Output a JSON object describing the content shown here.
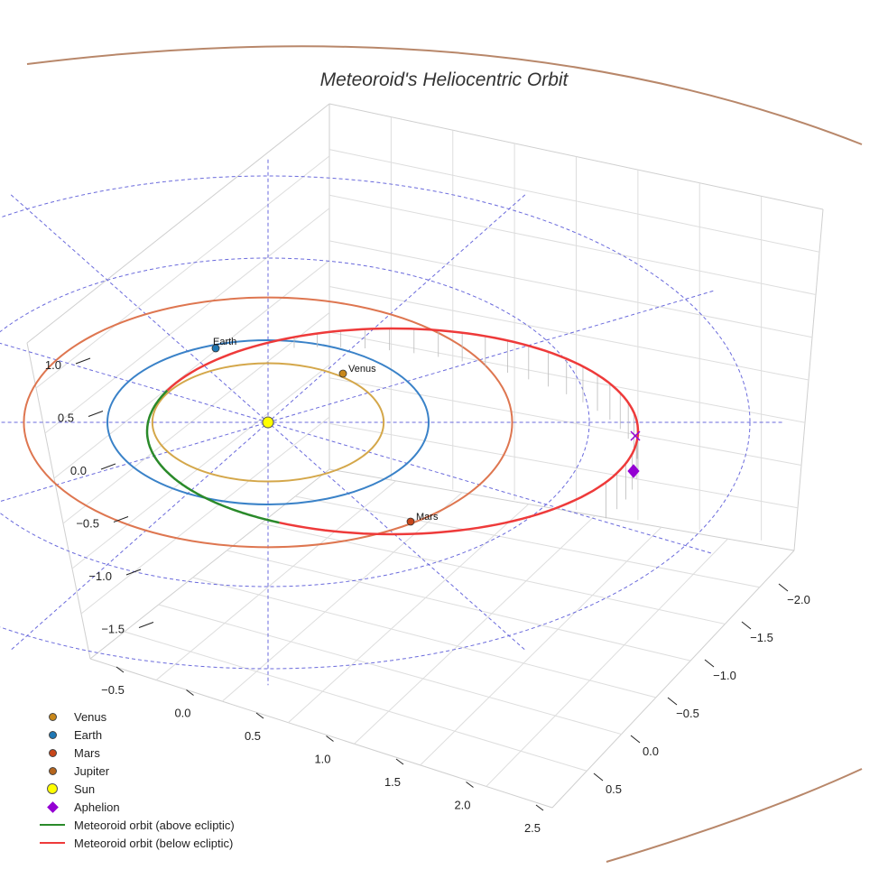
{
  "chart_data": {
    "type": "scatter3d",
    "title": "Meteoroid's Heliocentric Orbit",
    "x_ticks": [
      "−0.5",
      "0.0",
      "0.5",
      "1.0",
      "1.5",
      "2.0",
      "2.5"
    ],
    "y_ticks": [
      "−2.0",
      "−1.5",
      "−1.0",
      "−0.5",
      "0.0",
      "0.5"
    ],
    "z_ticks": [
      "1.0",
      "0.5",
      "0.0",
      "−0.5",
      "−1.0",
      "−1.5"
    ],
    "planets": [
      {
        "name": "Venus",
        "orbit_radius_au": 0.72,
        "color": "#c8871a",
        "orbit_color": "#d4a74a"
      },
      {
        "name": "Earth",
        "orbit_radius_au": 1.0,
        "color": "#1f77b4",
        "orbit_color": "#3a82c8"
      },
      {
        "name": "Mars",
        "orbit_radius_au": 1.52,
        "color": "#c8461a",
        "orbit_color": "#de7650"
      },
      {
        "name": "Jupiter",
        "orbit_radius_au": 5.2,
        "color": "#b5651d",
        "orbit_color": "#b8876a"
      }
    ],
    "plane_circles_au": [
      1.0,
      2.0,
      3.0
    ],
    "sun": {
      "name": "Sun",
      "color": "#ffff00"
    },
    "aphelion": {
      "name": "Aphelion",
      "color": "#9400d3"
    },
    "meteoroid_segments": [
      {
        "name": "Meteoroid orbit (above ecliptic)",
        "color": "#2a8a2a"
      },
      {
        "name": "Meteoroid orbit (below ecliptic)",
        "color": "#ee3a3a"
      }
    ]
  },
  "legend": [
    {
      "label": "Venus",
      "kind": "dot",
      "color": "#c8871a"
    },
    {
      "label": "Earth",
      "kind": "dot",
      "color": "#1f77b4"
    },
    {
      "label": "Mars",
      "kind": "dot",
      "color": "#c8461a"
    },
    {
      "label": "Jupiter",
      "kind": "dot",
      "color": "#b5651d"
    },
    {
      "label": "Sun",
      "kind": "sun",
      "color": "#ffff00"
    },
    {
      "label": "Aphelion",
      "kind": "diamond",
      "color": "#9400d3"
    },
    {
      "label": "Meteoroid orbit (above ecliptic)",
      "kind": "line",
      "color": "#2a8a2a"
    },
    {
      "label": "Meteoroid orbit (below ecliptic)",
      "kind": "line",
      "color": "#ee3a3a"
    }
  ]
}
